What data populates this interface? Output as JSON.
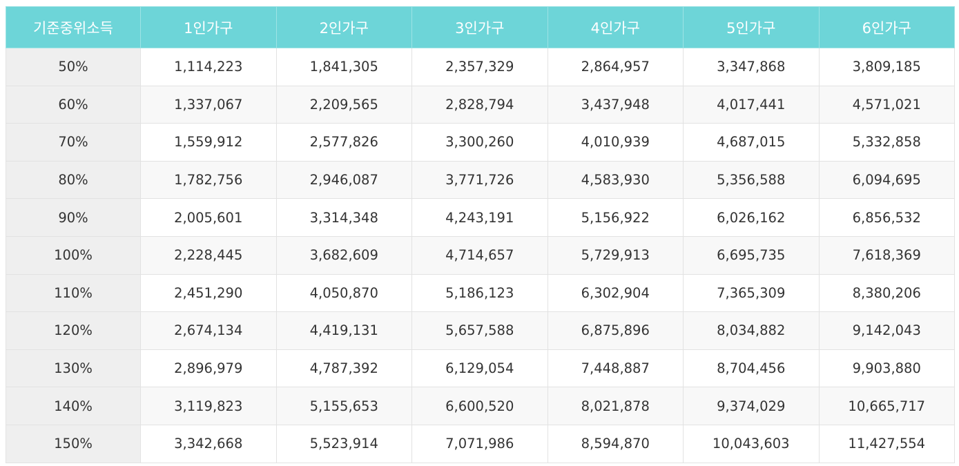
{
  "table": {
    "headers": [
      "기준중위소득",
      "1인가구",
      "2인가구",
      "3인가구",
      "4인가구",
      "5인가구",
      "6인가구"
    ],
    "rows": [
      {
        "label": "50%",
        "values": [
          "1,114,223",
          "1,841,305",
          "2,357,329",
          "2,864,957",
          "3,347,868",
          "3,809,185"
        ]
      },
      {
        "label": "60%",
        "values": [
          "1,337,067",
          "2,209,565",
          "2,828,794",
          "3,437,948",
          "4,017,441",
          "4,571,021"
        ]
      },
      {
        "label": "70%",
        "values": [
          "1,559,912",
          "2,577,826",
          "3,300,260",
          "4,010,939",
          "4,687,015",
          "5,332,858"
        ]
      },
      {
        "label": "80%",
        "values": [
          "1,782,756",
          "2,946,087",
          "3,771,726",
          "4,583,930",
          "5,356,588",
          "6,094,695"
        ]
      },
      {
        "label": "90%",
        "values": [
          "2,005,601",
          "3,314,348",
          "4,243,191",
          "5,156,922",
          "6,026,162",
          "6,856,532"
        ]
      },
      {
        "label": "100%",
        "values": [
          "2,228,445",
          "3,682,609",
          "4,714,657",
          "5,729,913",
          "6,695,735",
          "7,618,369"
        ]
      },
      {
        "label": "110%",
        "values": [
          "2,451,290",
          "4,050,870",
          "5,186,123",
          "6,302,904",
          "7,365,309",
          "8,380,206"
        ]
      },
      {
        "label": "120%",
        "values": [
          "2,674,134",
          "4,419,131",
          "5,657,588",
          "6,875,896",
          "8,034,882",
          "9,142,043"
        ]
      },
      {
        "label": "130%",
        "values": [
          "2,896,979",
          "4,787,392",
          "6,129,054",
          "7,448,887",
          "8,704,456",
          "9,903,880"
        ]
      },
      {
        "label": "140%",
        "values": [
          "3,119,823",
          "5,155,653",
          "6,600,520",
          "8,021,878",
          "9,374,029",
          "10,665,717"
        ]
      },
      {
        "label": "150%",
        "values": [
          "3,342,668",
          "5,523,914",
          "7,071,986",
          "8,594,870",
          "10,043,603",
          "11,427,554"
        ]
      }
    ]
  },
  "colors": {
    "header_background": "#6dd5d8",
    "header_text": "#ffffff",
    "label_column_background": "#efefef",
    "alternate_row_background": "#f8f8f8"
  }
}
